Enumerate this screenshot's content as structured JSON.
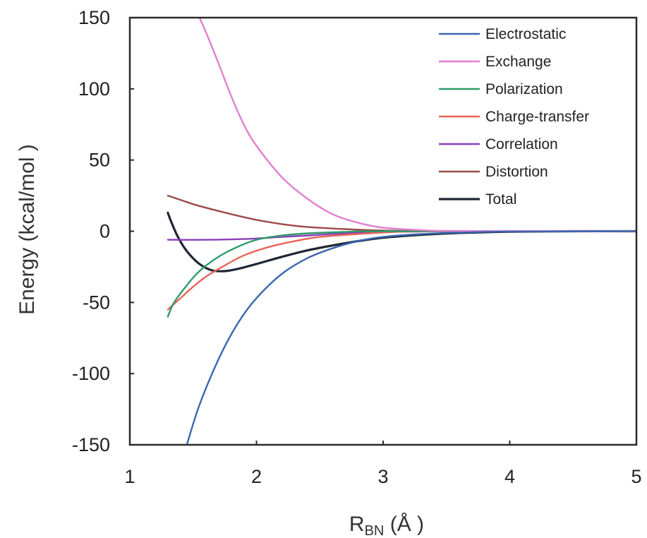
{
  "chart_data": {
    "type": "line",
    "xlabel": "R",
    "xlabel_sub": "BN",
    "xlabel_unit": " (Å )",
    "ylabel": "Energy (kcal/mol )",
    "xlim": [
      1,
      5
    ],
    "ylim": [
      -150,
      150
    ],
    "xticks": [
      1,
      2,
      3,
      4,
      5
    ],
    "yticks": [
      150,
      100,
      50,
      0,
      -50,
      -100,
      -150
    ],
    "grid": false,
    "legend_position": "top-right",
    "series": [
      {
        "name": "Electrostatic",
        "color": "#3a66b0",
        "points": [
          [
            1.45,
            -150
          ],
          [
            1.55,
            -122
          ],
          [
            1.7,
            -90
          ],
          [
            1.85,
            -65
          ],
          [
            2.0,
            -47
          ],
          [
            2.2,
            -30
          ],
          [
            2.4,
            -19
          ],
          [
            2.6,
            -12
          ],
          [
            2.8,
            -7
          ],
          [
            3.0,
            -4
          ],
          [
            3.3,
            -2
          ],
          [
            3.6,
            -1
          ],
          [
            4.0,
            -0.3
          ],
          [
            5.0,
            0
          ]
        ]
      },
      {
        "name": "Exchange",
        "color": "#e07fd2",
        "points": [
          [
            1.55,
            150
          ],
          [
            1.6,
            140
          ],
          [
            1.7,
            118
          ],
          [
            1.8,
            95
          ],
          [
            1.9,
            75
          ],
          [
            2.0,
            60
          ],
          [
            2.2,
            38
          ],
          [
            2.4,
            23
          ],
          [
            2.6,
            12
          ],
          [
            2.8,
            6
          ],
          [
            3.0,
            2.5
          ],
          [
            3.3,
            0.8
          ],
          [
            3.6,
            0.2
          ],
          [
            5.0,
            0
          ]
        ]
      },
      {
        "name": "Polarization",
        "color": "#2e9a6a",
        "points": [
          [
            1.3,
            -60
          ],
          [
            1.35,
            -50
          ],
          [
            1.45,
            -38
          ],
          [
            1.55,
            -28
          ],
          [
            1.7,
            -18
          ],
          [
            1.85,
            -11
          ],
          [
            2.0,
            -6
          ],
          [
            2.2,
            -3
          ],
          [
            2.4,
            -1.5
          ],
          [
            2.7,
            -0.5
          ],
          [
            3.0,
            0
          ],
          [
            5.0,
            0
          ]
        ]
      },
      {
        "name": "Charge-transfer",
        "color": "#e8645a",
        "points": [
          [
            1.3,
            -55
          ],
          [
            1.4,
            -47
          ],
          [
            1.5,
            -39
          ],
          [
            1.6,
            -32
          ],
          [
            1.75,
            -24
          ],
          [
            1.9,
            -17
          ],
          [
            2.1,
            -11
          ],
          [
            2.3,
            -7
          ],
          [
            2.5,
            -4
          ],
          [
            2.8,
            -2
          ],
          [
            3.1,
            -0.5
          ],
          [
            3.5,
            0
          ],
          [
            5.0,
            0
          ]
        ]
      },
      {
        "name": "Correlation",
        "color": "#8a3fb8",
        "points": [
          [
            1.3,
            -6
          ],
          [
            1.6,
            -6
          ],
          [
            1.9,
            -5.5
          ],
          [
            2.2,
            -4
          ],
          [
            2.5,
            -2.5
          ],
          [
            2.8,
            -1
          ],
          [
            3.2,
            -0.3
          ],
          [
            3.6,
            0
          ],
          [
            5.0,
            0
          ]
        ]
      },
      {
        "name": "Distortion",
        "color": "#9b4a4a",
        "points": [
          [
            1.3,
            25
          ],
          [
            1.4,
            22
          ],
          [
            1.5,
            19
          ],
          [
            1.6,
            16.5
          ],
          [
            1.8,
            12
          ],
          [
            2.0,
            8
          ],
          [
            2.2,
            5
          ],
          [
            2.4,
            3
          ],
          [
            2.7,
            1.5
          ],
          [
            3.0,
            0.5
          ],
          [
            3.5,
            0
          ],
          [
            5.0,
            0
          ]
        ]
      },
      {
        "name": "Total",
        "color": "#1f2633",
        "points": [
          [
            1.3,
            13
          ],
          [
            1.33,
            6
          ],
          [
            1.38,
            -4
          ],
          [
            1.45,
            -14
          ],
          [
            1.55,
            -23
          ],
          [
            1.65,
            -27.5
          ],
          [
            1.75,
            -28
          ],
          [
            1.85,
            -26.5
          ],
          [
            2.0,
            -23
          ],
          [
            2.2,
            -18
          ],
          [
            2.4,
            -13.5
          ],
          [
            2.6,
            -10
          ],
          [
            2.8,
            -7
          ],
          [
            3.0,
            -4.5
          ],
          [
            3.3,
            -2.5
          ],
          [
            3.6,
            -1.2
          ],
          [
            4.0,
            -0.3
          ],
          [
            4.5,
            0
          ],
          [
            5.0,
            0
          ]
        ]
      }
    ]
  }
}
